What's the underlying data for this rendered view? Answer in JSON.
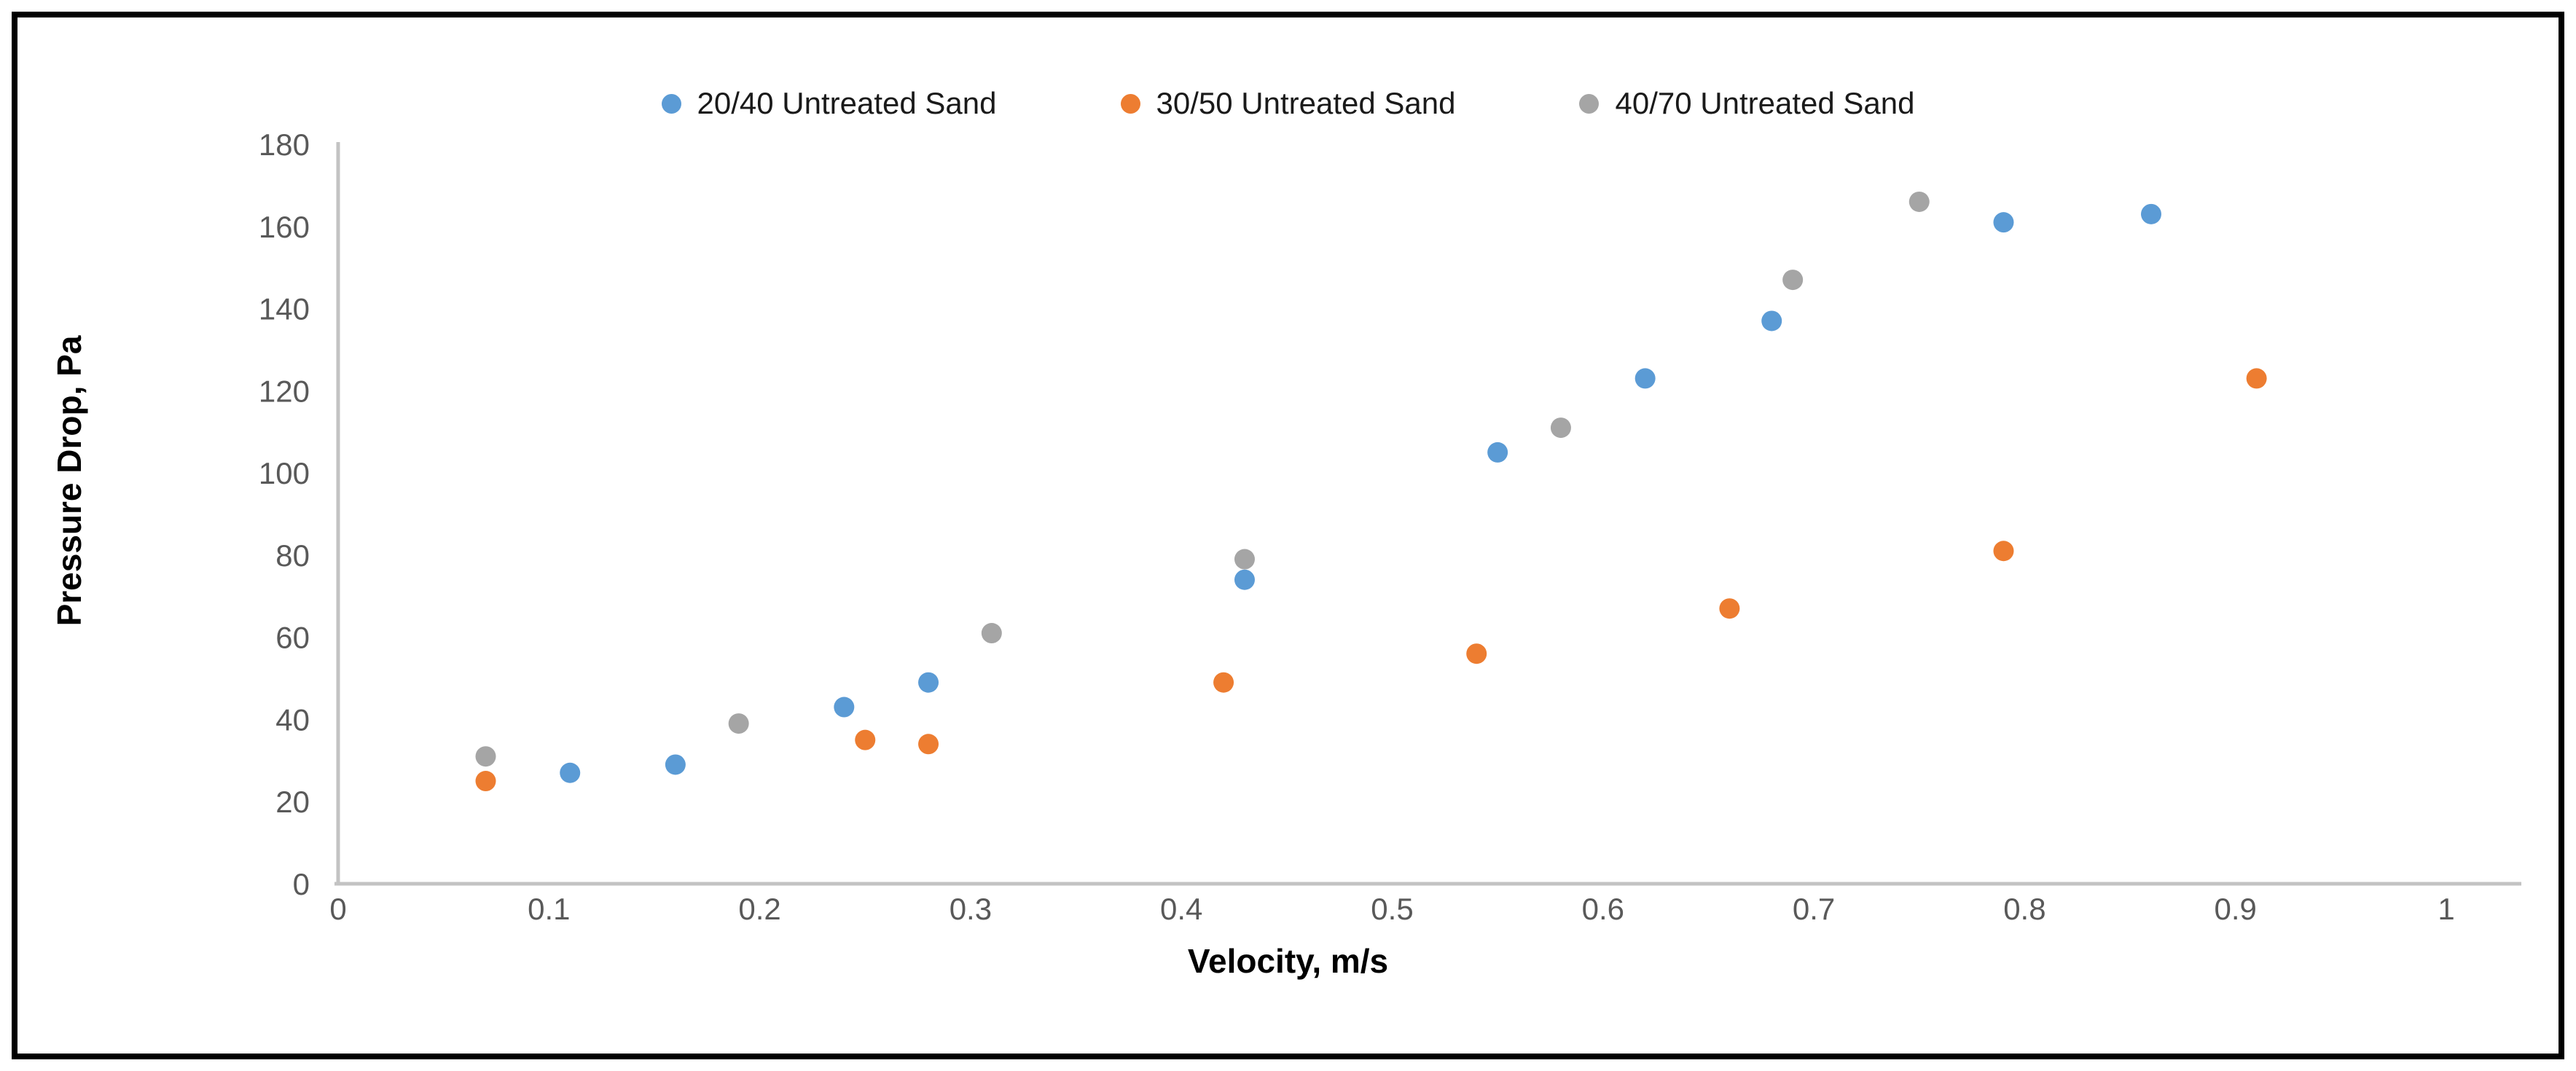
{
  "frame": {
    "border_color": "#000000",
    "background": "#ffffff"
  },
  "chart_data": {
    "type": "scatter",
    "title": "",
    "xlabel": "Velocity, m/s",
    "ylabel": "Pressure Drop, Pa",
    "xlim": [
      0,
      1
    ],
    "ylim": [
      0,
      180
    ],
    "grid": false,
    "legend_position": "top",
    "axis_color": "#c3c3c3",
    "tick_label_color": "#595959",
    "x_tick_labels": [
      "0",
      "0.1",
      "0.2",
      "0.3",
      "0.4",
      "0.5",
      "0.6",
      "0.7",
      "0.8",
      "0.9",
      "1"
    ],
    "x_tick_values": [
      0,
      0.1,
      0.2,
      0.3,
      0.4,
      0.5,
      0.6,
      0.7,
      0.8,
      0.9,
      1
    ],
    "y_tick_labels": [
      "0",
      "20",
      "40",
      "60",
      "80",
      "100",
      "120",
      "140",
      "160",
      "180"
    ],
    "y_tick_values": [
      0,
      20,
      40,
      60,
      80,
      100,
      120,
      140,
      160,
      180
    ],
    "series": [
      {
        "name": "20/40 Untreated Sand",
        "color": "#5B9BD5",
        "points": [
          [
            0.11,
            27
          ],
          [
            0.16,
            29
          ],
          [
            0.24,
            43
          ],
          [
            0.28,
            49
          ],
          [
            0.43,
            74
          ],
          [
            0.55,
            105
          ],
          [
            0.62,
            123
          ],
          [
            0.68,
            137
          ],
          [
            0.79,
            161
          ],
          [
            0.86,
            163
          ]
        ]
      },
      {
        "name": "30/50 Untreated Sand",
        "color": "#ED7D31",
        "points": [
          [
            0.07,
            25
          ],
          [
            0.25,
            35
          ],
          [
            0.28,
            34
          ],
          [
            0.42,
            49
          ],
          [
            0.54,
            56
          ],
          [
            0.66,
            67
          ],
          [
            0.79,
            81
          ],
          [
            0.91,
            123
          ]
        ]
      },
      {
        "name": "40/70 Untreated Sand",
        "color": "#A5A5A5",
        "points": [
          [
            0.07,
            31
          ],
          [
            0.19,
            39
          ],
          [
            0.31,
            61
          ],
          [
            0.43,
            79
          ],
          [
            0.58,
            111
          ],
          [
            0.69,
            147
          ],
          [
            0.75,
            166
          ]
        ]
      }
    ]
  }
}
